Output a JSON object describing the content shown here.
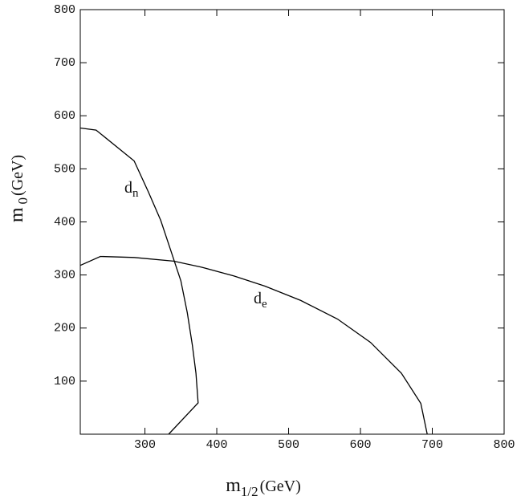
{
  "chart_data": {
    "type": "line",
    "x_label": {
      "main": "m",
      "sub": "1/2",
      "unit": "(GeV)"
    },
    "y_label": {
      "main": "m",
      "sub": "0",
      "unit": "(GeV)"
    },
    "xlim": [
      210,
      800
    ],
    "xticks": [
      300,
      400,
      500,
      600,
      700,
      800
    ],
    "ylim": [
      0,
      800
    ],
    "yticks": [
      100,
      200,
      300,
      400,
      500,
      600,
      700,
      800
    ],
    "color": "#000000",
    "series": [
      {
        "label": "d",
        "label_sub": "n",
        "x": [
          210,
          232,
          285,
          305,
          322,
          335,
          350,
          359,
          366,
          371,
          374,
          333
        ],
        "values": [
          577,
          573,
          515,
          456,
          403,
          350,
          289,
          229,
          168,
          115,
          59,
          0
        ]
      },
      {
        "label": "d",
        "label_sub": "e",
        "x": [
          210,
          238,
          285,
          340,
          378,
          424,
          467,
          517,
          568,
          614,
          657,
          684,
          693
        ],
        "values": [
          318,
          335,
          333,
          326,
          315,
          298,
          279,
          252,
          217,
          173,
          115,
          58,
          0
        ]
      }
    ]
  }
}
